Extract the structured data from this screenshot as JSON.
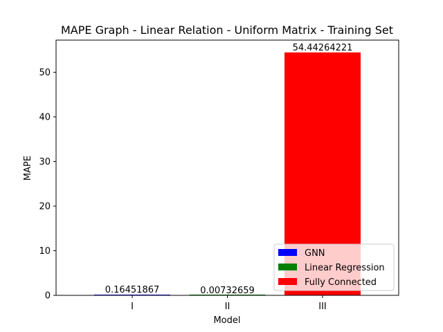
{
  "chart_data": {
    "type": "bar",
    "title": "MAPE Graph - Linear Relation - Uniform Matrix - Training Set",
    "xlabel": "Model",
    "ylabel": "MAPE",
    "categories": [
      "I",
      "II",
      "III"
    ],
    "ylim": [
      0,
      57.2
    ],
    "yticks": [
      0,
      10,
      20,
      30,
      40,
      50
    ],
    "grid": false,
    "legend_position": "bottom-right",
    "series": [
      {
        "name": "GNN",
        "color": "#0000ff",
        "values": [
          0.16451867,
          null,
          null
        ],
        "labels": [
          "0.16451867",
          null,
          null
        ]
      },
      {
        "name": "Linear Regression",
        "color": "#008000",
        "values": [
          null,
          0.00732659,
          null
        ],
        "labels": [
          null,
          "0.00732659",
          null
        ]
      },
      {
        "name": "Fully Connected",
        "color": "#ff0000",
        "values": [
          null,
          null,
          54.44264221
        ],
        "labels": [
          null,
          null,
          "54.44264221"
        ]
      }
    ]
  }
}
